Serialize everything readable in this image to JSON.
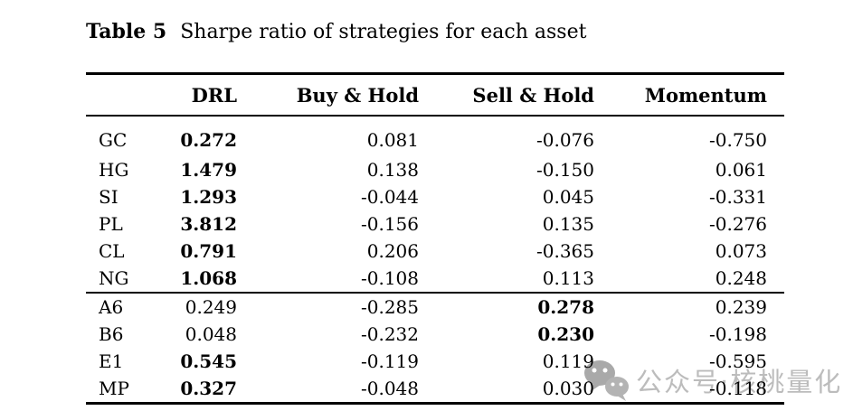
{
  "page": {
    "background": "#ffffff",
    "text_color": "#000000"
  },
  "title": {
    "label": "Table 5",
    "caption": "Sharpe ratio of strategies for each asset"
  },
  "table": {
    "columns": [
      "DRL",
      "Buy & Hold",
      "Sell & Hold",
      "Momentum"
    ],
    "groups": [
      {
        "rows": [
          {
            "asset": "GC",
            "values": [
              "0.272",
              "0.081",
              "-0.076",
              "-0.750"
            ],
            "bold": 0
          },
          {
            "asset": "HG",
            "values": [
              "1.479",
              "0.138",
              "-0.150",
              "0.061"
            ],
            "bold": 0
          },
          {
            "asset": "SI",
            "values": [
              "1.293",
              "-0.044",
              "0.045",
              "-0.331"
            ],
            "bold": 0
          },
          {
            "asset": "PL",
            "values": [
              "3.812",
              "-0.156",
              "0.135",
              "-0.276"
            ],
            "bold": 0
          },
          {
            "asset": "CL",
            "values": [
              "0.791",
              "0.206",
              "-0.365",
              "0.073"
            ],
            "bold": 0
          },
          {
            "asset": "NG",
            "values": [
              "1.068",
              "-0.108",
              "0.113",
              "0.248"
            ],
            "bold": 0
          }
        ]
      },
      {
        "rows": [
          {
            "asset": "A6",
            "values": [
              "0.249",
              "-0.285",
              "0.278",
              "0.239"
            ],
            "bold": 2
          },
          {
            "asset": "B6",
            "values": [
              "0.048",
              "-0.232",
              "0.230",
              "-0.198"
            ],
            "bold": 2
          },
          {
            "asset": "E1",
            "values": [
              "0.545",
              "-0.119",
              "0.119",
              "-0.595"
            ],
            "bold": 0
          },
          {
            "asset": "MP",
            "values": [
              "0.327",
              "-0.048",
              "0.030",
              "-0.118"
            ],
            "bold": 0
          }
        ]
      }
    ]
  },
  "watermark": {
    "icon": "wechat-icon",
    "text": "公众号·核桃量化",
    "text_color": "#bcbcbc",
    "icon_color": "#a9a9a9"
  }
}
